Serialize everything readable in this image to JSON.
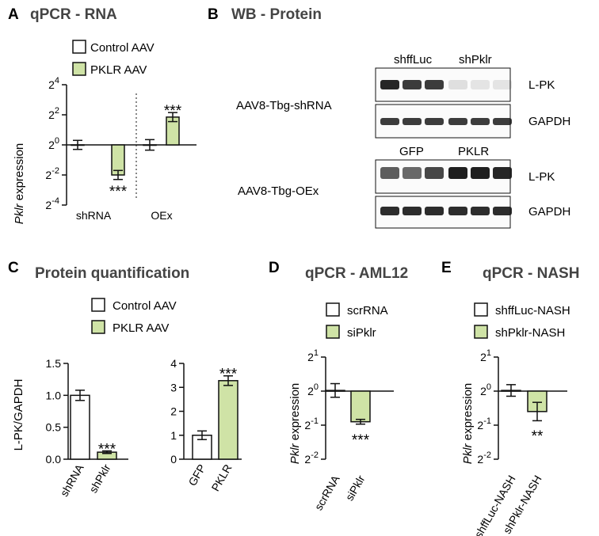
{
  "colors": {
    "control_fill": "#ffffff",
    "treated_fill": "#cfe3a6",
    "stroke": "#111111",
    "band_dark": "#1a1a1a"
  },
  "panels": {
    "A": {
      "letter": "A",
      "title": "qPCR - RNA",
      "legend": [
        "Control AAV",
        "PKLR AAV"
      ],
      "ylabel_italic": "Pklr",
      "ylabel_rest": " expression"
    },
    "B": {
      "letter": "B",
      "title": "WB - Protein",
      "row1_label": "AAV8-Tbg-shRNA",
      "row2_label": "AAV8-Tbg-OEx",
      "row1_groups": [
        "shffLuc",
        "shPklr"
      ],
      "row2_groups": [
        "GFP",
        "PKLR"
      ],
      "blot_labels": [
        "L-PK",
        "GAPDH",
        "L-PK",
        "GAPDH"
      ]
    },
    "C": {
      "letter": "C",
      "title": "Protein quantification",
      "legend": [
        "Control AAV",
        "PKLR AAV"
      ],
      "ylabel": "L-PK/GAPDH"
    },
    "D": {
      "letter": "D",
      "title": "qPCR - AML12",
      "legend": [
        "scrRNA",
        "siPklr"
      ],
      "ylabel_italic": "Pklr",
      "ylabel_rest": " expression"
    },
    "E": {
      "letter": "E",
      "title": "qPCR - NASH",
      "legend": [
        "shffLuc-NASH",
        "shPklr-NASH"
      ],
      "ylabel_italic": "Pklr",
      "ylabel_rest": " expression"
    }
  },
  "chart_data": [
    {
      "panel": "A",
      "type": "bar",
      "scale": "log2",
      "yticks": [
        "2^4",
        "2^2",
        "2^0",
        "2^-2",
        "2^-4"
      ],
      "ylim_exponent": [
        -4,
        4
      ],
      "categories": [
        "shRNA",
        "OEx"
      ],
      "series": [
        {
          "name": "Control AAV",
          "values": [
            1.0,
            1.0
          ],
          "errors_exponent": [
            0.3,
            0.35
          ]
        },
        {
          "name": "PKLR AAV",
          "values": [
            0.25,
            3.6
          ],
          "errors_exponent": [
            0.3,
            0.3
          ]
        }
      ],
      "significance": [
        "***",
        "***"
      ]
    },
    {
      "panel": "C",
      "type": "bar",
      "subplots": [
        {
          "categories": [
            "shRNA",
            "shPklr"
          ],
          "values": [
            1.0,
            0.11
          ],
          "errors": [
            0.08,
            0.02
          ],
          "ylim": [
            0,
            1.5
          ],
          "yticks": [
            "0.0",
            "0.5",
            "1.0",
            "1.5"
          ],
          "significance": "***"
        },
        {
          "categories": [
            "GFP",
            "PKLR"
          ],
          "values": [
            1.0,
            3.28
          ],
          "errors": [
            0.18,
            0.2
          ],
          "ylim": [
            0,
            4
          ],
          "yticks": [
            "0",
            "1",
            "2",
            "3",
            "4"
          ],
          "significance": "***"
        }
      ]
    },
    {
      "panel": "D",
      "type": "bar",
      "scale": "log2",
      "yticks": [
        "2^1",
        "2^0",
        "2^-1",
        "2^-2"
      ],
      "ylim_exponent": [
        -2,
        1
      ],
      "categories": [
        "scrRNA",
        "siPklr"
      ],
      "values_exponent": [
        0.02,
        -0.9
      ],
      "errors_exponent": [
        0.2,
        0.07
      ],
      "significance": "***"
    },
    {
      "panel": "E",
      "type": "bar",
      "scale": "log2",
      "yticks": [
        "2^1",
        "2^0",
        "2^-1",
        "2^-2"
      ],
      "ylim_exponent": [
        -2,
        1
      ],
      "categories": [
        "shffLuc-NASH",
        "shPklr-NASH"
      ],
      "values_exponent": [
        0.02,
        -0.6
      ],
      "errors_exponent": [
        0.17,
        0.27
      ],
      "significance": "**"
    }
  ]
}
